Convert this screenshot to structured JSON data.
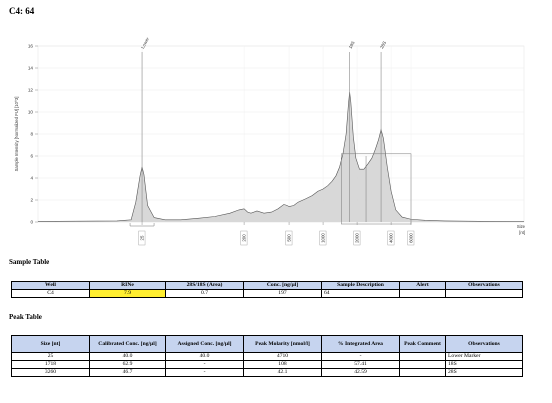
{
  "page_title": "C4: 64",
  "chart_data": {
    "type": "line",
    "x_scale": "log",
    "y_label": "Sample Intensity [Normalized FU] [10^3]",
    "x_label": "Size [nt]",
    "x_label_line1": "Size",
    "x_label_line2": "[nt]",
    "ylim": [
      0,
      16
    ],
    "yticks": [
      0,
      2,
      4,
      6,
      8,
      10,
      12,
      14,
      16
    ],
    "xticks": [
      25,
      200,
      500,
      1000,
      2000,
      4000,
      6000
    ],
    "x": [
      3,
      15,
      20,
      22,
      24,
      25,
      26,
      28,
      32,
      40,
      55,
      80,
      110,
      150,
      180,
      200,
      215,
      230,
      260,
      300,
      350,
      400,
      450,
      480,
      500,
      550,
      600,
      700,
      800,
      900,
      1000,
      1100,
      1200,
      1300,
      1400,
      1500,
      1600,
      1680,
      1718,
      1760,
      1850,
      1950,
      2100,
      2300,
      2500,
      2700,
      2900,
      3100,
      3260,
      3420,
      3700,
      4000,
      4400,
      5000,
      6000,
      8000,
      12000,
      30000,
      60000
    ],
    "y": [
      0.05,
      0.1,
      0.2,
      1.8,
      4.2,
      5.0,
      4.3,
      1.5,
      0.4,
      0.2,
      0.2,
      0.35,
      0.5,
      0.8,
      1.1,
      1.2,
      0.9,
      0.8,
      1.0,
      0.8,
      0.9,
      1.2,
      1.6,
      1.5,
      1.4,
      1.5,
      1.8,
      2.1,
      2.4,
      2.8,
      3.0,
      3.3,
      3.7,
      4.2,
      5.0,
      6.2,
      8.0,
      10.8,
      11.8,
      10.9,
      7.8,
      5.8,
      4.8,
      4.8,
      5.3,
      5.8,
      6.6,
      7.5,
      8.4,
      7.6,
      5.0,
      2.8,
      1.1,
      0.45,
      0.25,
      0.15,
      0.1,
      0.05,
      0.03
    ],
    "peak_markers": [
      {
        "label": "Lower",
        "x": 25
      },
      {
        "label": "18S",
        "x": 1718
      },
      {
        "label": "28S",
        "x": 3260
      }
    ],
    "region": {
      "from": 1450,
      "to": 6000
    }
  },
  "sample_table": {
    "title": "Sample Table",
    "headers": [
      "Well",
      "RINe",
      "28S/18S (Area)",
      "Conc. [ng/µl]",
      "Sample Description",
      "Alert",
      "Observations"
    ],
    "rows": [
      [
        "C4",
        "7.9",
        "0.7",
        "197",
        "64",
        "",
        ""
      ]
    ]
  },
  "peak_table": {
    "title": "Peak Table",
    "headers": [
      "Size [nt]",
      "Calibrated Conc. [ng/µl]",
      "Assigned Conc. [ng/µl]",
      "Peak Molarity [nmol/l]",
      "% Integrated Area",
      "Peak Comment",
      "Observations"
    ],
    "rows": [
      [
        "25",
        "40.0",
        "40.0",
        "4710",
        "-",
        "",
        "Lower Marker"
      ],
      [
        "1718",
        "62.9",
        "-",
        "108",
        "57.41",
        "",
        "18S"
      ],
      [
        "3260",
        "46.7",
        "-",
        "42.1",
        "42.59",
        "",
        "28S"
      ]
    ]
  },
  "colors": {
    "fill": "#d4d4d4",
    "stroke": "#555555",
    "header_bg": "#c6d4ef",
    "highlight": "#ffee30"
  }
}
